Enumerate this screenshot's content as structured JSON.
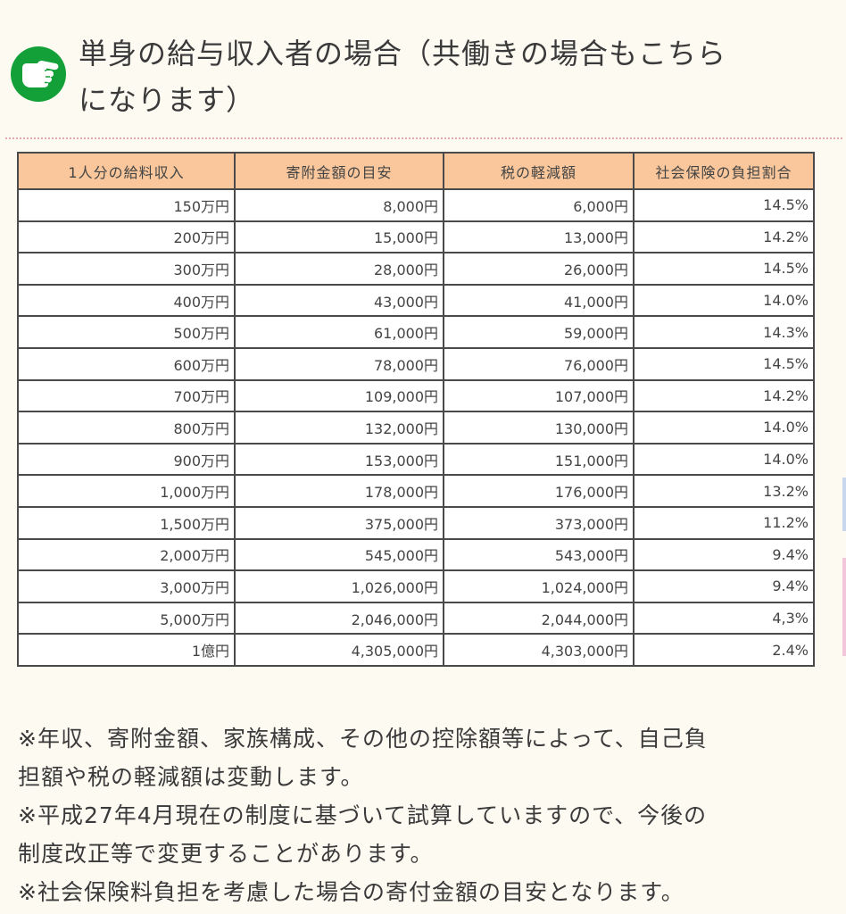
{
  "heading": {
    "line1": "単身の給与収入者の場合（共働きの場合もこちら",
    "line2": "になります）",
    "icon": "pointing-hand-icon",
    "icon_color": "#14a038"
  },
  "table": {
    "header_color": "#f9c79b",
    "columns": [
      "1人分の給料収入",
      "寄附金額の目安",
      "税の軽減額",
      "社会保険の負担割合"
    ],
    "rows": [
      [
        "150万円",
        "8,000円",
        "6,000円",
        "14.5%"
      ],
      [
        "200万円",
        "15,000円",
        "13,000円",
        "14.2%"
      ],
      [
        "300万円",
        "28,000円",
        "26,000円",
        "14.5%"
      ],
      [
        "400万円",
        "43,000円",
        "41,000円",
        "14.0%"
      ],
      [
        "500万円",
        "61,000円",
        "59,000円",
        "14.3%"
      ],
      [
        "600万円",
        "78,000円",
        "76,000円",
        "14.5%"
      ],
      [
        "700万円",
        "109,000円",
        "107,000円",
        "14.2%"
      ],
      [
        "800万円",
        "132,000円",
        "130,000円",
        "14.0%"
      ],
      [
        "900万円",
        "153,000円",
        "151,000円",
        "14.0%"
      ],
      [
        "1,000万円",
        "178,000円",
        "176,000円",
        "13.2%"
      ],
      [
        "1,500万円",
        "375,000円",
        "373,000円",
        "11.2%"
      ],
      [
        "2,000万円",
        "545,000円",
        "543,000円",
        "9.4%"
      ],
      [
        "3,000万円",
        "1,026,000円",
        "1,024,000円",
        "9.4%"
      ],
      [
        "5,000万円",
        "2,046,000円",
        "2,044,000円",
        "4,3%"
      ],
      [
        "1億円",
        "4,305,000円",
        "4,303,000円",
        "2.4%"
      ]
    ]
  },
  "notes": {
    "lines": [
      "※年収、寄附金額、家族構成、その他の控除額等によって、自己負",
      "担額や税の軽減額は変動します。",
      "※平成27年4月現在の制度に基づいて試算していますので、今後の",
      "制度改正等で変更することがあります。",
      "※社会保険料負担を考慮した場合の寄付金額の目安となります。"
    ]
  }
}
